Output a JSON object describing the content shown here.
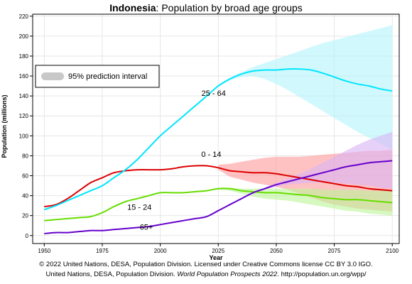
{
  "chart_data": {
    "type": "line",
    "title_bold": "Indonesia",
    "title_rest": ": Population by broad age groups",
    "xlabel": "Year",
    "ylabel": "Population (millions)",
    "xlim": [
      1945,
      2103
    ],
    "ylim": [
      -8,
      222
    ],
    "x_ticks": [
      1950,
      1975,
      2000,
      2025,
      2050,
      2075,
      2100
    ],
    "y_ticks": [
      0,
      20,
      40,
      60,
      80,
      100,
      120,
      140,
      160,
      180,
      200,
      220
    ],
    "grid": true,
    "legend": {
      "position": "top-left",
      "label": "95% prediction interval"
    },
    "series": [
      {
        "name": "0 - 14",
        "color": "#dd0000",
        "band_color": "#ff9a9a",
        "x": [
          1950,
          1955,
          1960,
          1965,
          1970,
          1975,
          1980,
          1985,
          1990,
          1995,
          2000,
          2005,
          2010,
          2015,
          2020,
          2025,
          2030,
          2035,
          2040,
          2045,
          2050,
          2055,
          2060,
          2065,
          2070,
          2075,
          2080,
          2085,
          2090,
          2095,
          2100
        ],
        "values": [
          29,
          31,
          37,
          45,
          53,
          58,
          63,
          65,
          66,
          66,
          66,
          67,
          69,
          70,
          70,
          68,
          65,
          64,
          63,
          63,
          62,
          60,
          58,
          56,
          54,
          52,
          50,
          49,
          47,
          46,
          45
        ],
        "lower": [
          null,
          null,
          null,
          null,
          null,
          null,
          null,
          null,
          null,
          null,
          null,
          null,
          null,
          null,
          null,
          66,
          59,
          56,
          53,
          51,
          49,
          46,
          42,
          38,
          34,
          31,
          29,
          27,
          26,
          25,
          24
        ],
        "upper": [
          null,
          null,
          null,
          null,
          null,
          null,
          null,
          null,
          null,
          null,
          null,
          null,
          null,
          null,
          null,
          71,
          72,
          74,
          76,
          78,
          79,
          79,
          79,
          80,
          81,
          82,
          83,
          84,
          85,
          85,
          86
        ],
        "label_at": [
          2022,
          79
        ]
      },
      {
        "name": "15 - 24",
        "color": "#66dd00",
        "band_color": "#bbf59a",
        "x": [
          1950,
          1955,
          1960,
          1965,
          1970,
          1975,
          1980,
          1985,
          1990,
          1995,
          2000,
          2005,
          2010,
          2015,
          2020,
          2025,
          2030,
          2035,
          2040,
          2045,
          2050,
          2055,
          2060,
          2065,
          2070,
          2075,
          2080,
          2085,
          2090,
          2095,
          2100
        ],
        "values": [
          15,
          16,
          17,
          18,
          19,
          23,
          29,
          34,
          37,
          40,
          43,
          43,
          43,
          44,
          45,
          47,
          47,
          45,
          44,
          43,
          43,
          42,
          41,
          40,
          38,
          37,
          36,
          36,
          35,
          34,
          33
        ],
        "lower": [
          null,
          null,
          null,
          null,
          null,
          null,
          null,
          null,
          null,
          null,
          null,
          null,
          null,
          null,
          null,
          46,
          45,
          42,
          39,
          37,
          36,
          35,
          33,
          31,
          29,
          27,
          25,
          24,
          22,
          21,
          20
        ],
        "upper": [
          null,
          null,
          null,
          null,
          null,
          null,
          null,
          null,
          null,
          null,
          null,
          null,
          null,
          null,
          null,
          48,
          48,
          47,
          47,
          47,
          47,
          47,
          47,
          47,
          46,
          46,
          46,
          46,
          45,
          45,
          45
        ],
        "label_at": [
          1991,
          26
        ]
      },
      {
        "name": "25 - 64",
        "color": "#00e5ff",
        "band_color": "#b3f5fc",
        "x": [
          1950,
          1955,
          1960,
          1965,
          1970,
          1975,
          1980,
          1985,
          1990,
          1995,
          2000,
          2005,
          2010,
          2015,
          2020,
          2025,
          2030,
          2035,
          2040,
          2045,
          2050,
          2055,
          2060,
          2065,
          2070,
          2075,
          2080,
          2085,
          2090,
          2095,
          2100
        ],
        "values": [
          26,
          30,
          35,
          40,
          45,
          50,
          58,
          66,
          76,
          88,
          100,
          110,
          120,
          130,
          140,
          150,
          157,
          162,
          165,
          166,
          166,
          167,
          167,
          166,
          163,
          159,
          155,
          152,
          150,
          147,
          145
        ],
        "lower": [
          null,
          null,
          null,
          null,
          null,
          null,
          null,
          null,
          null,
          null,
          null,
          null,
          null,
          null,
          null,
          150,
          156,
          159,
          160,
          157,
          152,
          146,
          139,
          132,
          125,
          118,
          111,
          104,
          98,
          92,
          86
        ],
        "upper": [
          null,
          null,
          null,
          null,
          null,
          null,
          null,
          null,
          null,
          null,
          null,
          null,
          null,
          null,
          null,
          150,
          158,
          164,
          169,
          173,
          177,
          181,
          185,
          189,
          193,
          196,
          199,
          202,
          205,
          208,
          211
        ],
        "label_at": [
          2023,
          140
        ]
      },
      {
        "name": "65+",
        "color": "#6600cc",
        "band_color": "#d9b3f5",
        "x": [
          1950,
          1955,
          1960,
          1965,
          1970,
          1975,
          1980,
          1985,
          1990,
          1995,
          2000,
          2005,
          2010,
          2015,
          2020,
          2025,
          2030,
          2035,
          2040,
          2045,
          2050,
          2055,
          2060,
          2065,
          2070,
          2075,
          2080,
          2085,
          2090,
          2095,
          2100
        ],
        "values": [
          2,
          3,
          3,
          4,
          5,
          5,
          6,
          7,
          8,
          9,
          11,
          13,
          15,
          17,
          19,
          25,
          31,
          37,
          43,
          47,
          51,
          54,
          57,
          60,
          63,
          66,
          69,
          71,
          73,
          74,
          75
        ],
        "lower": [
          null,
          null,
          null,
          null,
          null,
          null,
          null,
          null,
          null,
          null,
          null,
          null,
          null,
          null,
          null,
          25,
          31,
          37,
          42,
          46,
          49,
          51,
          52,
          53,
          53,
          53,
          52,
          51,
          50,
          48,
          47
        ],
        "upper": [
          null,
          null,
          null,
          null,
          null,
          null,
          null,
          null,
          null,
          null,
          null,
          null,
          null,
          null,
          null,
          25,
          31,
          37,
          43,
          48,
          53,
          57,
          62,
          67,
          73,
          79,
          85,
          91,
          96,
          100,
          104
        ],
        "label_at": [
          1994,
          6
        ]
      }
    ]
  },
  "footer": {
    "line1": "© 2022 United Nations, DESA, Population Division. Licensed under Creative Commons license CC BY 3.0 IGO.",
    "line2_pre": "United Nations, DESA, Population Division. ",
    "line2_italic": "World Population Prospects 2022",
    "line2_post": ". http://population.un.org/wpp/"
  }
}
